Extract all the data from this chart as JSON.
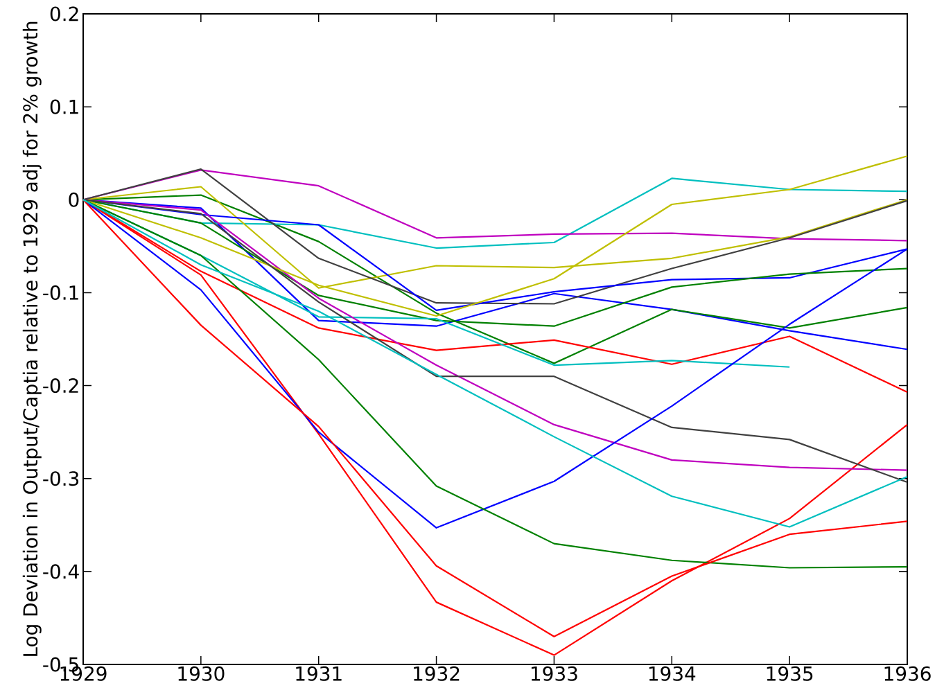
{
  "chart_data": {
    "type": "line",
    "ylabel": "Log Deviation in Output/Captia relative to 1929 adj for 2% growth",
    "x": [
      1929,
      1930,
      1931,
      1932,
      1933,
      1934,
      1935,
      1936
    ],
    "xlim": [
      1929,
      1936
    ],
    "xticks": [
      1929,
      1930,
      1931,
      1932,
      1933,
      1934,
      1935,
      1936
    ],
    "ylim": [
      -0.5,
      0.2
    ],
    "yticks": [
      -0.5,
      -0.4,
      -0.3,
      -0.2,
      -0.1,
      0,
      0.1,
      0.2
    ],
    "series": [
      {
        "color": "#0000ff",
        "values": [
          0,
          -0.009,
          -0.13,
          -0.136,
          -0.101,
          -0.118,
          -0.141,
          -0.161
        ]
      },
      {
        "color": "#008000",
        "values": [
          0,
          0.005,
          -0.045,
          -0.122,
          -0.176,
          -0.118,
          -0.138,
          -0.116
        ]
      },
      {
        "color": "#ff0000",
        "values": [
          0,
          -0.077,
          -0.138,
          -0.162,
          -0.151,
          -0.177,
          -0.147,
          -0.207
        ]
      },
      {
        "color": "#00bfbf",
        "values": [
          0,
          -0.025,
          -0.027,
          -0.052,
          -0.046,
          0.023,
          0.011,
          0.009
        ]
      },
      {
        "color": "#bf00bf",
        "values": [
          0,
          0.032,
          0.015,
          -0.041,
          -0.037,
          -0.036,
          -0.042,
          -0.044
        ]
      },
      {
        "color": "#bfbf00",
        "values": [
          0,
          0.014,
          -0.095,
          -0.071,
          -0.073,
          -0.063,
          -0.04,
          0.0
        ]
      },
      {
        "color": "#404040",
        "values": [
          0,
          0.033,
          -0.063,
          -0.111,
          -0.112,
          -0.074,
          -0.041,
          -0.001
        ]
      },
      {
        "color": "#0000ff",
        "values": [
          0,
          -0.016,
          -0.027,
          -0.119,
          -0.099,
          -0.086,
          -0.084,
          -0.053
        ]
      },
      {
        "color": "#008000",
        "values": [
          0,
          -0.025,
          -0.103,
          -0.13,
          -0.136,
          -0.094,
          -0.08,
          -0.074
        ]
      },
      {
        "color": "#ff0000",
        "values": [
          0,
          -0.081,
          -0.252,
          -0.433,
          -0.49,
          -0.41,
          -0.343,
          -0.242
        ]
      },
      {
        "color": "#00bfbf",
        "values": [
          0,
          -0.06,
          -0.126,
          -0.128,
          -0.178,
          -0.173,
          -0.18,
          null
        ]
      },
      {
        "color": "#bf00bf",
        "values": [
          0,
          -0.011,
          -0.106,
          -0.178,
          -0.242,
          -0.28,
          -0.288,
          -0.291
        ]
      },
      {
        "color": "#bfbf00",
        "values": [
          0,
          -0.041,
          -0.092,
          -0.125,
          -0.085,
          -0.005,
          0.011,
          0.047
        ]
      },
      {
        "color": "#404040",
        "values": [
          0,
          -0.015,
          -0.11,
          -0.19,
          -0.19,
          -0.245,
          -0.258,
          -0.304
        ]
      },
      {
        "color": "#0000ff",
        "values": [
          0,
          -0.097,
          -0.25,
          -0.353,
          -0.303,
          -0.222,
          -0.134,
          -0.053
        ]
      },
      {
        "color": "#008000",
        "values": [
          0,
          -0.06,
          -0.172,
          -0.308,
          -0.37,
          -0.388,
          -0.396,
          -0.395
        ]
      },
      {
        "color": "#ff0000",
        "values": [
          0,
          -0.135,
          -0.244,
          -0.394,
          -0.47,
          -0.405,
          -0.36,
          -0.346
        ]
      },
      {
        "color": "#00bfbf",
        "values": [
          0,
          -0.07,
          -0.12,
          -0.188,
          -0.255,
          -0.319,
          -0.352,
          -0.298
        ]
      }
    ]
  }
}
